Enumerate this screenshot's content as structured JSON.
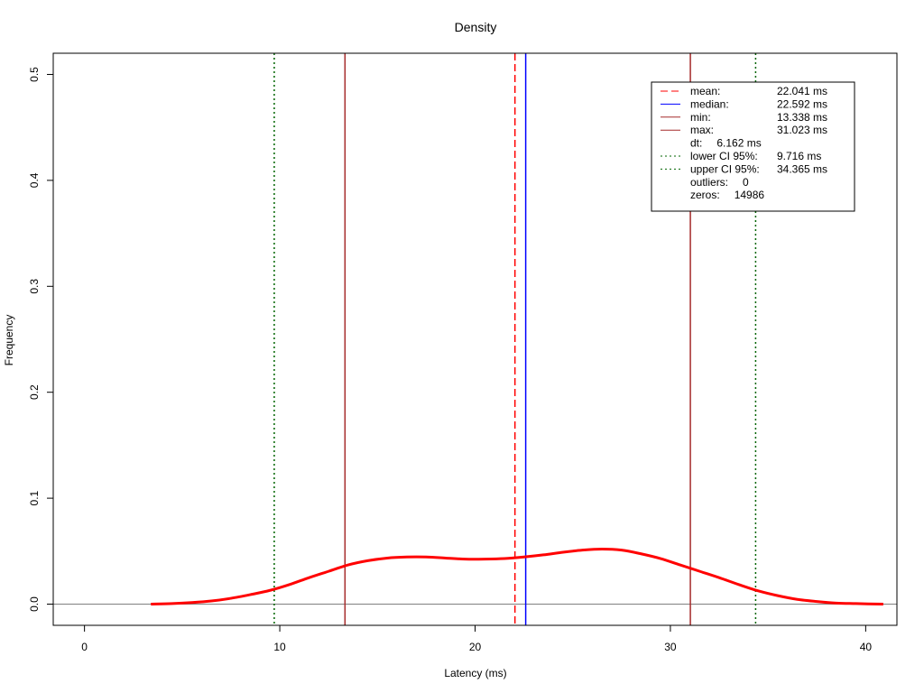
{
  "chart_data": {
    "type": "line",
    "title": "Density",
    "xlabel": "Latency (ms)",
    "ylabel": "Frequency",
    "xlim": [
      -1.6,
      41.6
    ],
    "ylim": [
      -0.02,
      0.52
    ],
    "xticks": [
      0,
      10,
      20,
      30,
      40
    ],
    "xtick_labels": [
      "0",
      "10",
      "20",
      "30",
      "40"
    ],
    "yticks": [
      0.0,
      0.1,
      0.2,
      0.3,
      0.4,
      0.5
    ],
    "ytick_labels": [
      "0.0",
      "0.1",
      "0.2",
      "0.3",
      "0.4",
      "0.5"
    ],
    "baseline": 0,
    "series": [
      {
        "type": "density",
        "color": "#ff0000",
        "x": [
          3.4,
          4.5,
          5.5,
          6.5,
          7.5,
          8.5,
          9.5,
          10.5,
          11.5,
          12.5,
          13.5,
          14.5,
          15.5,
          16.5,
          17.5,
          18.5,
          19.5,
          20.5,
          21.5,
          22.5,
          23.5,
          24.5,
          25.5,
          26.5,
          27.5,
          28.5,
          29.5,
          30.5,
          31.5,
          32.5,
          33.5,
          34.5,
          35.5,
          36.5,
          37.5,
          38.5,
          39.5,
          40.9
        ],
        "y": [
          0.0,
          0.0005,
          0.0015,
          0.003,
          0.0055,
          0.009,
          0.013,
          0.0185,
          0.025,
          0.031,
          0.037,
          0.041,
          0.0435,
          0.0445,
          0.0445,
          0.0435,
          0.0425,
          0.0425,
          0.043,
          0.0445,
          0.0465,
          0.049,
          0.051,
          0.052,
          0.051,
          0.0475,
          0.043,
          0.037,
          0.031,
          0.025,
          0.0185,
          0.0125,
          0.008,
          0.0045,
          0.0025,
          0.001,
          0.0005,
          0.0
        ]
      }
    ],
    "vlines": [
      {
        "name": "mean",
        "x": 22.041,
        "color": "#ff0000",
        "style": "dashed"
      },
      {
        "name": "median",
        "x": 22.592,
        "color": "#0000ff",
        "style": "solid"
      },
      {
        "name": "min",
        "x": 13.338,
        "color": "#a52a2a",
        "style": "solid"
      },
      {
        "name": "max",
        "x": 31.023,
        "color": "#a52a2a",
        "style": "solid"
      },
      {
        "name": "lower",
        "x": 9.716,
        "color": "#006400",
        "style": "dotted"
      },
      {
        "name": "upper",
        "x": 34.365,
        "color": "#006400",
        "style": "dotted"
      }
    ],
    "legend": {
      "position": "top-right",
      "entries": [
        {
          "label": "mean:",
          "value": "22.041 ms",
          "color": "#ff0000",
          "style": "dashed"
        },
        {
          "label": "median:",
          "value": "22.592 ms",
          "color": "#0000ff",
          "style": "solid"
        },
        {
          "label": "min:",
          "value": "13.338 ms",
          "color": "#a52a2a",
          "style": "solid"
        },
        {
          "label": "max:",
          "value": "31.023 ms",
          "color": "#a52a2a",
          "style": "solid"
        },
        {
          "label": "dt:",
          "value": "6.162 ms",
          "color": "",
          "style": "none"
        },
        {
          "label": "lower CI 95%:",
          "value": "9.716 ms",
          "color": "#006400",
          "style": "dotted"
        },
        {
          "label": "upper CI 95%:",
          "value": "34.365 ms",
          "color": "#006400",
          "style": "dotted"
        },
        {
          "label": "outliers:",
          "value": "0",
          "color": "",
          "style": "none"
        },
        {
          "label": "zeros:",
          "value": "14986",
          "color": "",
          "style": "none"
        }
      ]
    }
  }
}
